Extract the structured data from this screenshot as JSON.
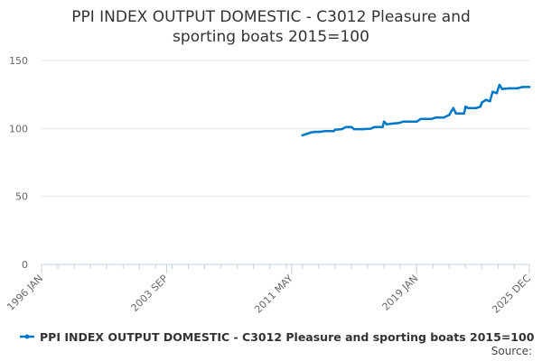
{
  "chart_data": {
    "type": "line",
    "title_lines": [
      "PPI INDEX OUTPUT DOMESTIC - C3012 Pleasure and",
      "sporting boats 2015=100"
    ],
    "xlabel": "",
    "ylabel": "",
    "x_ticks": [
      "1996 JAN",
      "2003 SEP",
      "2011 MAY",
      "2019 JAN",
      "2025 DEC"
    ],
    "y_ticks": [
      0,
      50,
      100,
      150
    ],
    "ylim": [
      0,
      150
    ],
    "xlim": [
      "1996-01",
      "2025-12"
    ],
    "grid": true,
    "legend_position": "bottom",
    "series": [
      {
        "name": "PPI INDEX OUTPUT DOMESTIC - C3012 Pleasure and sporting boats 2015=100",
        "color": "#0078c8",
        "points": [
          [
            "2012-01",
            95.0
          ],
          [
            "2012-04",
            96.0
          ],
          [
            "2012-07",
            97.0
          ],
          [
            "2012-10",
            97.5
          ],
          [
            "2013-01",
            97.5
          ],
          [
            "2013-06",
            98.0
          ],
          [
            "2013-12",
            98.0
          ],
          [
            "2014-01",
            99.0
          ],
          [
            "2014-06",
            99.5
          ],
          [
            "2014-09",
            101.0
          ],
          [
            "2015-01",
            101.0
          ],
          [
            "2015-03",
            99.5
          ],
          [
            "2015-09",
            99.5
          ],
          [
            "2016-03",
            99.8
          ],
          [
            "2016-06",
            101.0
          ],
          [
            "2016-12",
            101.0
          ],
          [
            "2017-01",
            105.0
          ],
          [
            "2017-03",
            103.0
          ],
          [
            "2017-06",
            103.5
          ],
          [
            "2017-12",
            104.0
          ],
          [
            "2018-03",
            105.0
          ],
          [
            "2018-09",
            105.0
          ],
          [
            "2019-01",
            105.0
          ],
          [
            "2019-04",
            107.0
          ],
          [
            "2019-12",
            107.0
          ],
          [
            "2020-03",
            108.0
          ],
          [
            "2020-09",
            108.0
          ],
          [
            "2021-01",
            110.0
          ],
          [
            "2021-04",
            115.0
          ],
          [
            "2021-06",
            111.0
          ],
          [
            "2021-12",
            111.0
          ],
          [
            "2022-01",
            116.0
          ],
          [
            "2022-03",
            115.0
          ],
          [
            "2022-09",
            115.0
          ],
          [
            "2022-12",
            116.0
          ],
          [
            "2023-01",
            119.0
          ],
          [
            "2023-04",
            121.0
          ],
          [
            "2023-07",
            120.0
          ],
          [
            "2023-09",
            127.0
          ],
          [
            "2023-12",
            126.0
          ],
          [
            "2024-02",
            132.0
          ],
          [
            "2024-04",
            129.0
          ],
          [
            "2024-09",
            129.5
          ],
          [
            "2025-03",
            129.5
          ],
          [
            "2025-07",
            130.5
          ],
          [
            "2025-12",
            130.5
          ]
        ]
      }
    ],
    "source_label": "Source:"
  }
}
